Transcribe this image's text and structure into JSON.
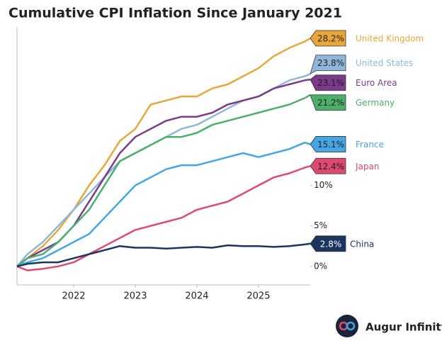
{
  "chart_data": {
    "type": "line",
    "title": "Cumulative CPI Inflation Since January 2021",
    "x": [
      2021.08,
      2021.25,
      2021.5,
      2021.75,
      2022.0,
      2022.25,
      2022.5,
      2022.75,
      2023.0,
      2023.25,
      2023.5,
      2023.75,
      2024.0,
      2024.25,
      2024.5,
      2024.75,
      2025.0,
      2025.25,
      2025.5,
      2025.75,
      2025.84
    ],
    "xlim": [
      2021.08,
      2025.84
    ],
    "xticks": [
      2022,
      2023,
      2024,
      2025
    ],
    "ylim": [
      -2.3,
      29.6
    ],
    "yticks": [
      {
        "value": 0,
        "label": "0%"
      },
      {
        "value": 5,
        "label": "5%"
      },
      {
        "value": 10,
        "label": "10%"
      }
    ],
    "series": [
      {
        "name": "United Kingdom",
        "color": "#e8a838",
        "values": [
          0,
          1,
          2.5,
          4.5,
          7,
          10,
          12.5,
          15.5,
          17,
          20,
          20.5,
          21,
          21,
          22,
          22.5,
          23.5,
          24.5,
          26,
          27,
          27.8,
          28.2
        ],
        "value_labels": [
          "28.2%"
        ]
      },
      {
        "name": "United States",
        "color": "#8fb7dc",
        "values": [
          0,
          1.5,
          3,
          5,
          7,
          9,
          11,
          13,
          14,
          15,
          16,
          17,
          17.5,
          18.5,
          19.5,
          20.5,
          21,
          22,
          23,
          23.5,
          23.8
        ],
        "value_labels": [
          "23.8%"
        ]
      },
      {
        "name": "Euro Area",
        "color": "#7b3a8c",
        "values": [
          0,
          1,
          2,
          3,
          5,
          8,
          11,
          14,
          16,
          17,
          18,
          18.5,
          18.5,
          19,
          20,
          20.5,
          21,
          22,
          22.5,
          23,
          23.1
        ],
        "value_labels": [
          "23.1%"
        ]
      },
      {
        "name": "Germany",
        "color": "#4caf6a",
        "values": [
          0,
          1,
          1.5,
          3,
          5,
          7,
          10,
          13,
          14,
          15,
          16,
          16,
          16.5,
          17.5,
          18,
          18.5,
          19,
          19.5,
          20,
          20.8,
          21.2
        ],
        "value_labels": [
          "21.2%"
        ]
      },
      {
        "name": "France",
        "color": "#45a6e6",
        "values": [
          0,
          0.5,
          1,
          2,
          3,
          4,
          6,
          8,
          10,
          11,
          12,
          12.5,
          12.5,
          13,
          13.5,
          14,
          13.5,
          14,
          14.5,
          15.3,
          15.1
        ],
        "value_labels": [
          "15.1%"
        ]
      },
      {
        "name": "Japan",
        "color": "#e0496f",
        "values": [
          0,
          -0.5,
          -0.3,
          0,
          0.5,
          1.5,
          2.5,
          3.5,
          4.5,
          5,
          5.5,
          6,
          7,
          7.5,
          8,
          9,
          10,
          11,
          11.5,
          12.2,
          12.4
        ],
        "value_labels": [
          "12.4%"
        ]
      },
      {
        "name": "China",
        "color": "#1c3560",
        "values": [
          0,
          0.3,
          0.5,
          0.5,
          1,
          1.5,
          2,
          2.5,
          2.3,
          2.3,
          2.2,
          2.3,
          2.4,
          2.3,
          2.6,
          2.5,
          2.5,
          2.4,
          2.5,
          2.7,
          2.8
        ],
        "value_labels": [
          "2.8%"
        ]
      }
    ]
  },
  "brand": "Augur Infinity"
}
